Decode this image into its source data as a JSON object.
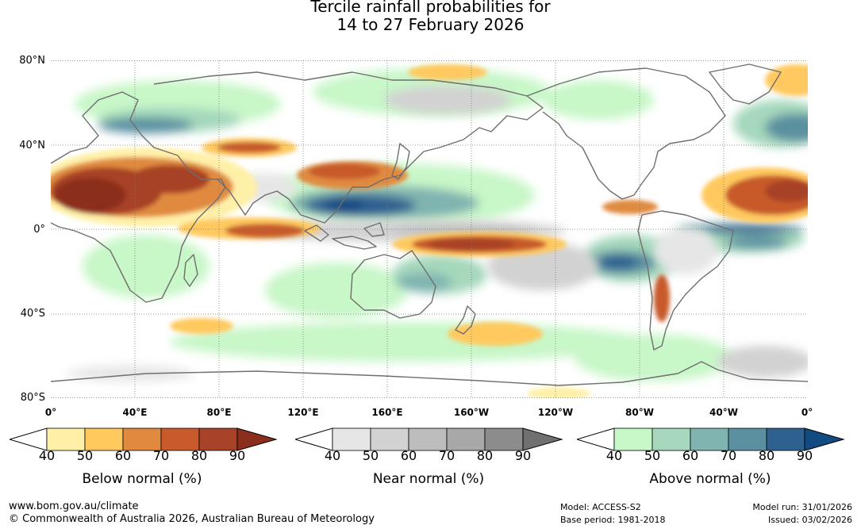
{
  "title": {
    "line1": "Tercile rainfall probabilities for",
    "line2": "14 to 27 February 2026"
  },
  "map": {
    "lat_labels": [
      "80°N",
      "40°N",
      "0°",
      "40°S",
      "80°S"
    ],
    "lon_labels": [
      "0°",
      "40°E",
      "80°E",
      "120°E",
      "160°E",
      "160°W",
      "120°W",
      "80°W",
      "40°W",
      "0°"
    ],
    "colors": {
      "below": [
        "#fff0a8",
        "#ffc95e",
        "#e08a40",
        "#c85a2c",
        "#a84228",
        "#8c2e1e"
      ],
      "near": [
        "#e6e6e6",
        "#d2d2d2",
        "#bdbdbd",
        "#a8a8a8",
        "#8c8c8c"
      ],
      "above": [
        "#c8f7c8",
        "#a5d8bc",
        "#80b4b0",
        "#5a90a0",
        "#2e6090",
        "#124a82"
      ]
    }
  },
  "colorbars": [
    {
      "id": "below",
      "title": "Below normal (%)",
      "ticks": [
        "40",
        "50",
        "60",
        "70",
        "80",
        "90"
      ],
      "colors": [
        "#fff0a8",
        "#ffc95e",
        "#e08a40",
        "#c85a2c",
        "#a84228",
        "#8c2e1e"
      ]
    },
    {
      "id": "near",
      "title": "Near normal (%)",
      "ticks": [
        "40",
        "50",
        "60",
        "70",
        "80",
        "90"
      ],
      "colors": [
        "#e6e6e6",
        "#d2d2d2",
        "#bdbdbd",
        "#a8a8a8",
        "#8c8c8c",
        "#707070"
      ]
    },
    {
      "id": "above",
      "title": "Above normal (%)",
      "ticks": [
        "40",
        "50",
        "60",
        "70",
        "80",
        "90"
      ],
      "colors": [
        "#c8f7c8",
        "#a5d8bc",
        "#80b4b0",
        "#5a90a0",
        "#2e6090",
        "#124a82"
      ]
    }
  ],
  "footer": {
    "website": "www.bom.gov.au/climate",
    "copyright": "© Commonwealth of Australia 2026, Australian Bureau of Meteorology",
    "model": "Model: ACCESS-S2",
    "base_period": "Base period: 1981-2018",
    "model_run": "Model run: 31/01/2026",
    "issued": "Issued: 03/02/2026"
  }
}
